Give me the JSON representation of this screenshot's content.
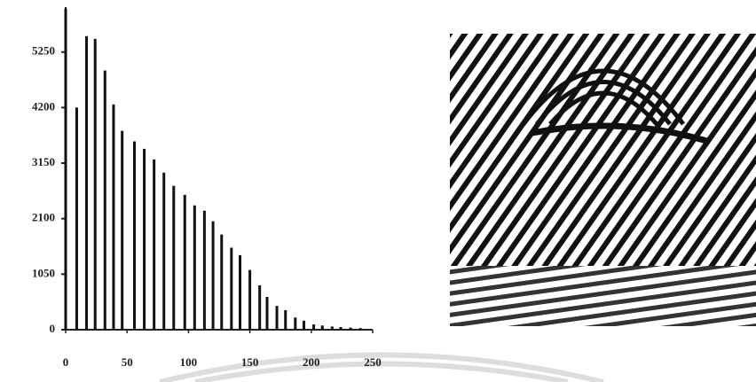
{
  "chart_data": {
    "type": "bar",
    "x": [
      0,
      9,
      17,
      24,
      32,
      39,
      46,
      56,
      64,
      72,
      80,
      88,
      97,
      105,
      113,
      120,
      127,
      135,
      142,
      150,
      158,
      164,
      172,
      179,
      187,
      194,
      202,
      209,
      217,
      224,
      232,
      240
    ],
    "values": [
      6070,
      4200,
      5550,
      5500,
      4900,
      4260,
      3760,
      3560,
      3420,
      3220,
      2970,
      2720,
      2550,
      2350,
      2250,
      2050,
      1800,
      1550,
      1410,
      1130,
      840,
      620,
      450,
      370,
      230,
      170,
      100,
      80,
      60,
      50,
      40,
      30
    ],
    "color": "#111111",
    "xlim": [
      0,
      250
    ],
    "xticks": [
      0,
      50,
      100,
      150,
      200,
      250
    ],
    "ylim": [
      0,
      6150
    ],
    "yticks": [
      0,
      1050,
      2100,
      3150,
      4200,
      5250
    ]
  }
}
